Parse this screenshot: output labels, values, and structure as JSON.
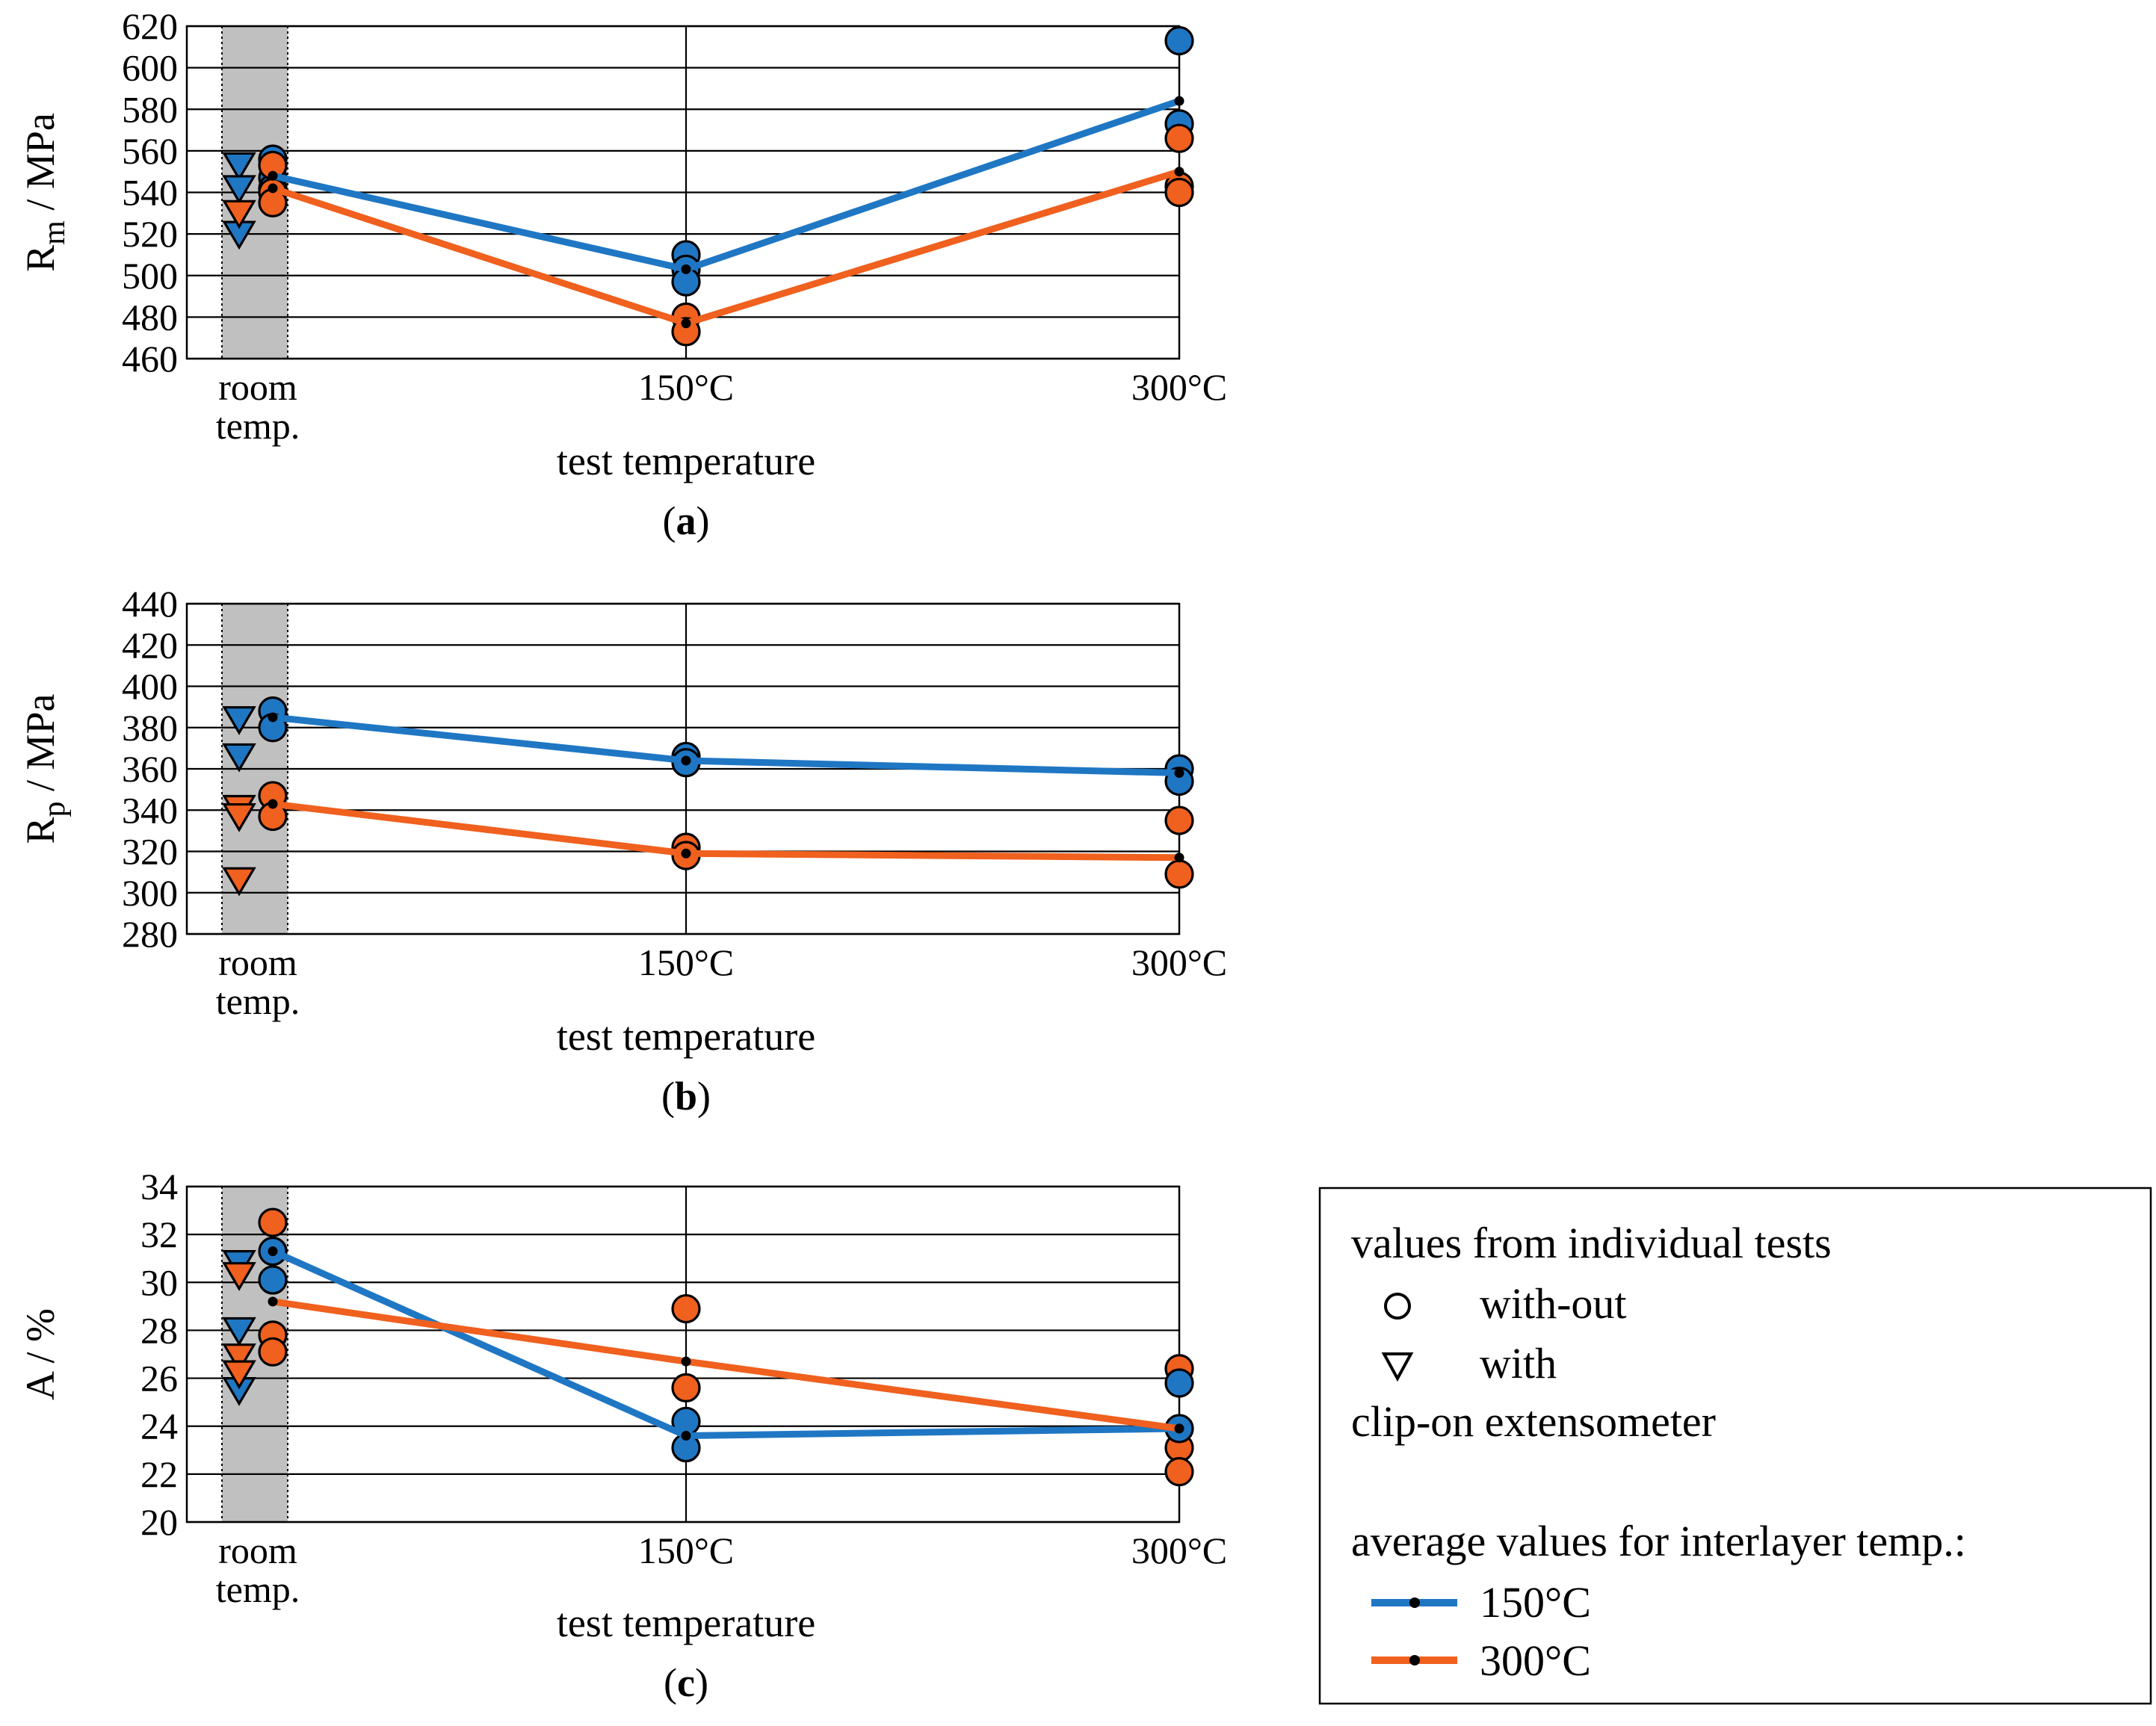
{
  "colors": {
    "series_150": "#1f77c4",
    "series_300": "#f0601e",
    "band": "#c0c0c0",
    "marker_edge": "#000000"
  },
  "chart_data": [
    {
      "type": "line",
      "panel": "(a)",
      "panel_open": "(",
      "panel_letter": "a",
      "panel_close": ")",
      "ylabel_main": "R",
      "ylabel_sub": "m",
      "ylabel_unit": " / MPa",
      "xlabel": "test temperature",
      "categories": [
        "room temp.",
        "150°C",
        "300°C"
      ],
      "category_lines": [
        [
          "room",
          "temp."
        ],
        [
          "150°C"
        ],
        [
          "300°C"
        ]
      ],
      "ylim": [
        460,
        620
      ],
      "yticks": [
        460,
        480,
        500,
        520,
        540,
        560,
        580,
        600,
        620
      ],
      "averages": [
        {
          "series": "150°C",
          "values": [
            548,
            503,
            584
          ]
        },
        {
          "series": "300°C",
          "values": [
            542,
            477,
            550
          ]
        }
      ],
      "individual": [
        {
          "series": "150°C",
          "marker": "circle",
          "category": "room temp.",
          "values": [
            556,
            547,
            542
          ]
        },
        {
          "series": "300°C",
          "marker": "circle",
          "category": "room temp.",
          "values": [
            553,
            540,
            535
          ]
        },
        {
          "series": "150°C",
          "marker": "triangle",
          "category": "room temp.",
          "values": [
            553,
            542,
            520
          ]
        },
        {
          "series": "300°C",
          "marker": "triangle",
          "category": "room temp.",
          "values": [
            530
          ]
        },
        {
          "series": "150°C",
          "marker": "circle",
          "category": "150°C",
          "values": [
            510,
            503,
            497
          ]
        },
        {
          "series": "300°C",
          "marker": "circle",
          "category": "150°C",
          "values": [
            480,
            473
          ]
        },
        {
          "series": "150°C",
          "marker": "circle",
          "category": "300°C",
          "values": [
            613,
            573
          ]
        },
        {
          "series": "300°C",
          "marker": "circle",
          "category": "300°C",
          "values": [
            566,
            543,
            540
          ]
        }
      ]
    },
    {
      "type": "line",
      "panel": "(b)",
      "panel_open": "(",
      "panel_letter": "b",
      "panel_close": ")",
      "ylabel_main": "R",
      "ylabel_sub": "p",
      "ylabel_unit": " / MPa",
      "xlabel": "test temperature",
      "categories": [
        "room temp.",
        "150°C",
        "300°C"
      ],
      "category_lines": [
        [
          "room",
          "temp."
        ],
        [
          "150°C"
        ],
        [
          "300°C"
        ]
      ],
      "ylim": [
        280,
        440
      ],
      "yticks": [
        280,
        300,
        320,
        340,
        360,
        380,
        400,
        420,
        440
      ],
      "averages": [
        {
          "series": "150°C",
          "values": [
            385,
            364,
            358
          ]
        },
        {
          "series": "300°C",
          "values": [
            343,
            319,
            317
          ]
        }
      ],
      "individual": [
        {
          "series": "150°C",
          "marker": "circle",
          "category": "room temp.",
          "values": [
            388,
            380
          ]
        },
        {
          "series": "300°C",
          "marker": "circle",
          "category": "room temp.",
          "values": [
            347,
            337
          ]
        },
        {
          "series": "150°C",
          "marker": "triangle",
          "category": "room temp.",
          "values": [
            384,
            366
          ]
        },
        {
          "series": "300°C",
          "marker": "triangle",
          "category": "room temp.",
          "values": [
            341,
            337,
            306
          ]
        },
        {
          "series": "150°C",
          "marker": "circle",
          "category": "150°C",
          "values": [
            366,
            363
          ]
        },
        {
          "series": "300°C",
          "marker": "circle",
          "category": "150°C",
          "values": [
            322,
            318
          ]
        },
        {
          "series": "150°C",
          "marker": "circle",
          "category": "300°C",
          "values": [
            360,
            354
          ]
        },
        {
          "series": "300°C",
          "marker": "circle",
          "category": "300°C",
          "values": [
            335,
            309
          ]
        }
      ]
    },
    {
      "type": "line",
      "panel": "(c)",
      "panel_open": "(",
      "panel_letter": "c",
      "panel_close": ")",
      "ylabel_main": "A",
      "ylabel_sub": "",
      "ylabel_unit": " / %",
      "xlabel": "test temperature",
      "categories": [
        "room temp.",
        "150°C",
        "300°C"
      ],
      "category_lines": [
        [
          "room",
          "temp."
        ],
        [
          "150°C"
        ],
        [
          "300°C"
        ]
      ],
      "ylim": [
        20,
        34
      ],
      "yticks": [
        20,
        22,
        24,
        26,
        28,
        30,
        32,
        34
      ],
      "averages": [
        {
          "series": "150°C",
          "values": [
            31.3,
            23.6,
            23.9
          ]
        },
        {
          "series": "300°C",
          "values": [
            29.2,
            26.7,
            23.9
          ]
        }
      ],
      "individual": [
        {
          "series": "300°C",
          "marker": "circle",
          "category": "room temp.",
          "values": [
            32.5,
            27.8,
            27.1
          ]
        },
        {
          "series": "150°C",
          "marker": "circle",
          "category": "room temp.",
          "values": [
            31.3,
            30.1
          ]
        },
        {
          "series": "150°C",
          "marker": "triangle",
          "category": "room temp.",
          "values": [
            30.8,
            28.0,
            25.5
          ]
        },
        {
          "series": "300°C",
          "marker": "triangle",
          "category": "room temp.",
          "values": [
            30.3,
            26.9,
            26.2
          ]
        },
        {
          "series": "300°C",
          "marker": "circle",
          "category": "150°C",
          "values": [
            28.9,
            25.6
          ]
        },
        {
          "series": "150°C",
          "marker": "circle",
          "category": "150°C",
          "values": [
            24.2,
            23.1
          ]
        },
        {
          "series": "300°C",
          "marker": "circle",
          "category": "300°C",
          "values": [
            26.4,
            23.1,
            22.1
          ]
        },
        {
          "series": "150°C",
          "marker": "circle",
          "category": "300°C",
          "values": [
            25.8,
            23.9
          ]
        }
      ]
    }
  ],
  "legend": {
    "header1": "values from individual tests",
    "item_circle": "with-out",
    "item_triangle": "with",
    "footer1": "clip-on extensometer",
    "header2": "average values for interlayer temp.:",
    "line_150": "150°C",
    "line_300": "300°C"
  }
}
